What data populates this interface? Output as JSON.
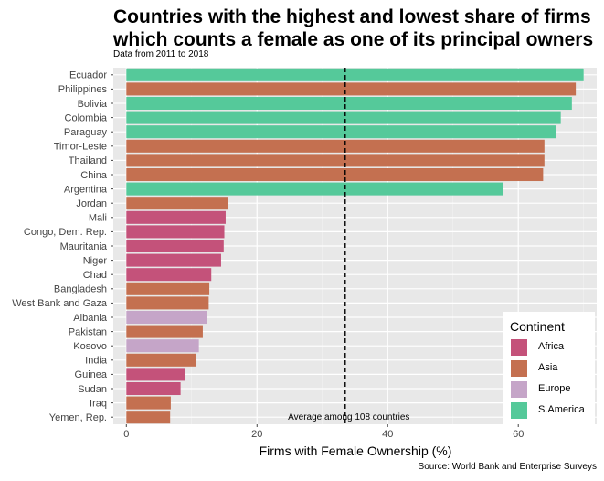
{
  "chart_data": {
    "type": "bar",
    "orientation": "horizontal",
    "title_lines": [
      "Countries with the highest and lowest share of firms",
      "which counts a female as one of its principal owners"
    ],
    "subtitle": "Data from 2011 to 2018",
    "xlabel": "Firms with Female Ownership (%)",
    "ylabel": "",
    "xlim": [
      -2,
      72
    ],
    "x_ticks": [
      0,
      20,
      40,
      60
    ],
    "grid": true,
    "caption": "Source: World Bank and Enterprise Surveys",
    "reference_line": {
      "value": 33.5,
      "style": "dashed",
      "label": "Average among 108 countries"
    },
    "legend": {
      "title": "Continent",
      "placement": "bottom-right",
      "entries": [
        {
          "label": "Africa",
          "color": "#c4527a"
        },
        {
          "label": "Asia",
          "color": "#c47050"
        },
        {
          "label": "Europe",
          "color": "#c5a5c8"
        },
        {
          "label": "S.America",
          "color": "#55c99a"
        }
      ]
    },
    "bars": [
      {
        "country": "Ecuador",
        "value": 70,
        "continent": "S.America"
      },
      {
        "country": "Philippines",
        "value": 68.8,
        "continent": "Asia"
      },
      {
        "country": "Bolivia",
        "value": 68.2,
        "continent": "S.America"
      },
      {
        "country": "Colombia",
        "value": 66.5,
        "continent": "S.America"
      },
      {
        "country": "Paraguay",
        "value": 65.8,
        "continent": "S.America"
      },
      {
        "country": "Timor-Leste",
        "value": 64,
        "continent": "Asia"
      },
      {
        "country": "Thailand",
        "value": 64,
        "continent": "Asia"
      },
      {
        "country": "China",
        "value": 63.8,
        "continent": "Asia"
      },
      {
        "country": "Argentina",
        "value": 57.6,
        "continent": "S.America"
      },
      {
        "country": "Jordan",
        "value": 15.6,
        "continent": "Asia"
      },
      {
        "country": "Mali",
        "value": 15.2,
        "continent": "Africa"
      },
      {
        "country": "Congo, Dem. Rep.",
        "value": 15,
        "continent": "Africa"
      },
      {
        "country": "Mauritania",
        "value": 14.9,
        "continent": "Africa"
      },
      {
        "country": "Niger",
        "value": 14.5,
        "continent": "Africa"
      },
      {
        "country": "Chad",
        "value": 13,
        "continent": "Africa"
      },
      {
        "country": "Bangladesh",
        "value": 12.7,
        "continent": "Asia"
      },
      {
        "country": "West Bank and Gaza",
        "value": 12.6,
        "continent": "Asia"
      },
      {
        "country": "Albania",
        "value": 12.4,
        "continent": "Europe"
      },
      {
        "country": "Pakistan",
        "value": 11.7,
        "continent": "Asia"
      },
      {
        "country": "Kosovo",
        "value": 11.1,
        "continent": "Europe"
      },
      {
        "country": "India",
        "value": 10.6,
        "continent": "Asia"
      },
      {
        "country": "Guinea",
        "value": 9,
        "continent": "Africa"
      },
      {
        "country": "Sudan",
        "value": 8.3,
        "continent": "Africa"
      },
      {
        "country": "Iraq",
        "value": 6.8,
        "continent": "Asia"
      },
      {
        "country": "Yemen, Rep.",
        "value": 6.7,
        "continent": "Asia"
      }
    ]
  }
}
